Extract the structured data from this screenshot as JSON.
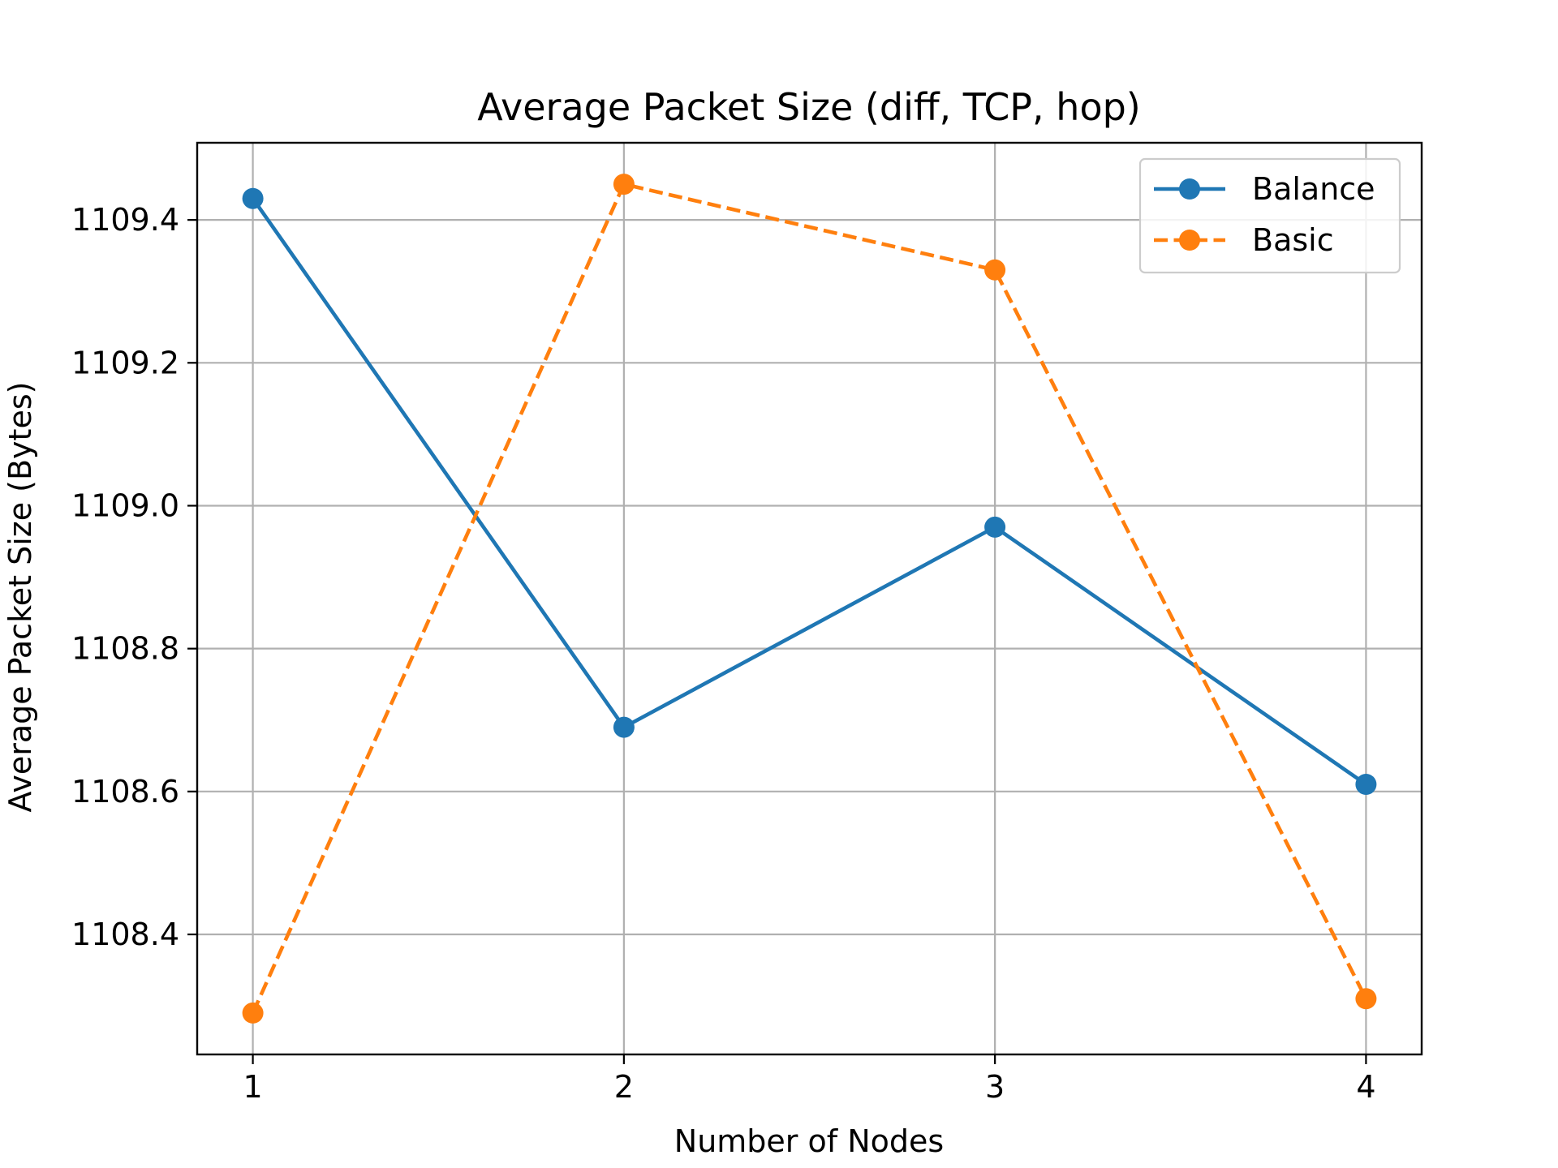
{
  "chart_data": {
    "type": "line",
    "title": "Average Packet Size (diff, TCP, hop)",
    "xlabel": "Number of Nodes",
    "ylabel": "Average Packet Size (Bytes)",
    "x": [
      1,
      2,
      3,
      4
    ],
    "xticks": [
      "1",
      "2",
      "3",
      "4"
    ],
    "yticks": [
      "1108.4",
      "1108.6",
      "1108.8",
      "1109.0",
      "1109.2",
      "1109.4"
    ],
    "ytick_values": [
      1108.4,
      1108.6,
      1108.8,
      1109.0,
      1109.2,
      1109.4
    ],
    "xlim": [
      0.85,
      4.15
    ],
    "ylim": [
      1108.232,
      1109.508
    ],
    "grid": true,
    "legend_position": "top-right",
    "series": [
      {
        "name": "Balance",
        "values": [
          1109.43,
          1108.69,
          1108.97,
          1108.61
        ],
        "color": "#1f77b4",
        "line_style": "solid",
        "marker": "circle"
      },
      {
        "name": "Basic",
        "values": [
          1108.29,
          1109.45,
          1109.33,
          1108.31
        ],
        "color": "#ff7f0e",
        "line_style": "dashed",
        "marker": "circle"
      }
    ]
  }
}
